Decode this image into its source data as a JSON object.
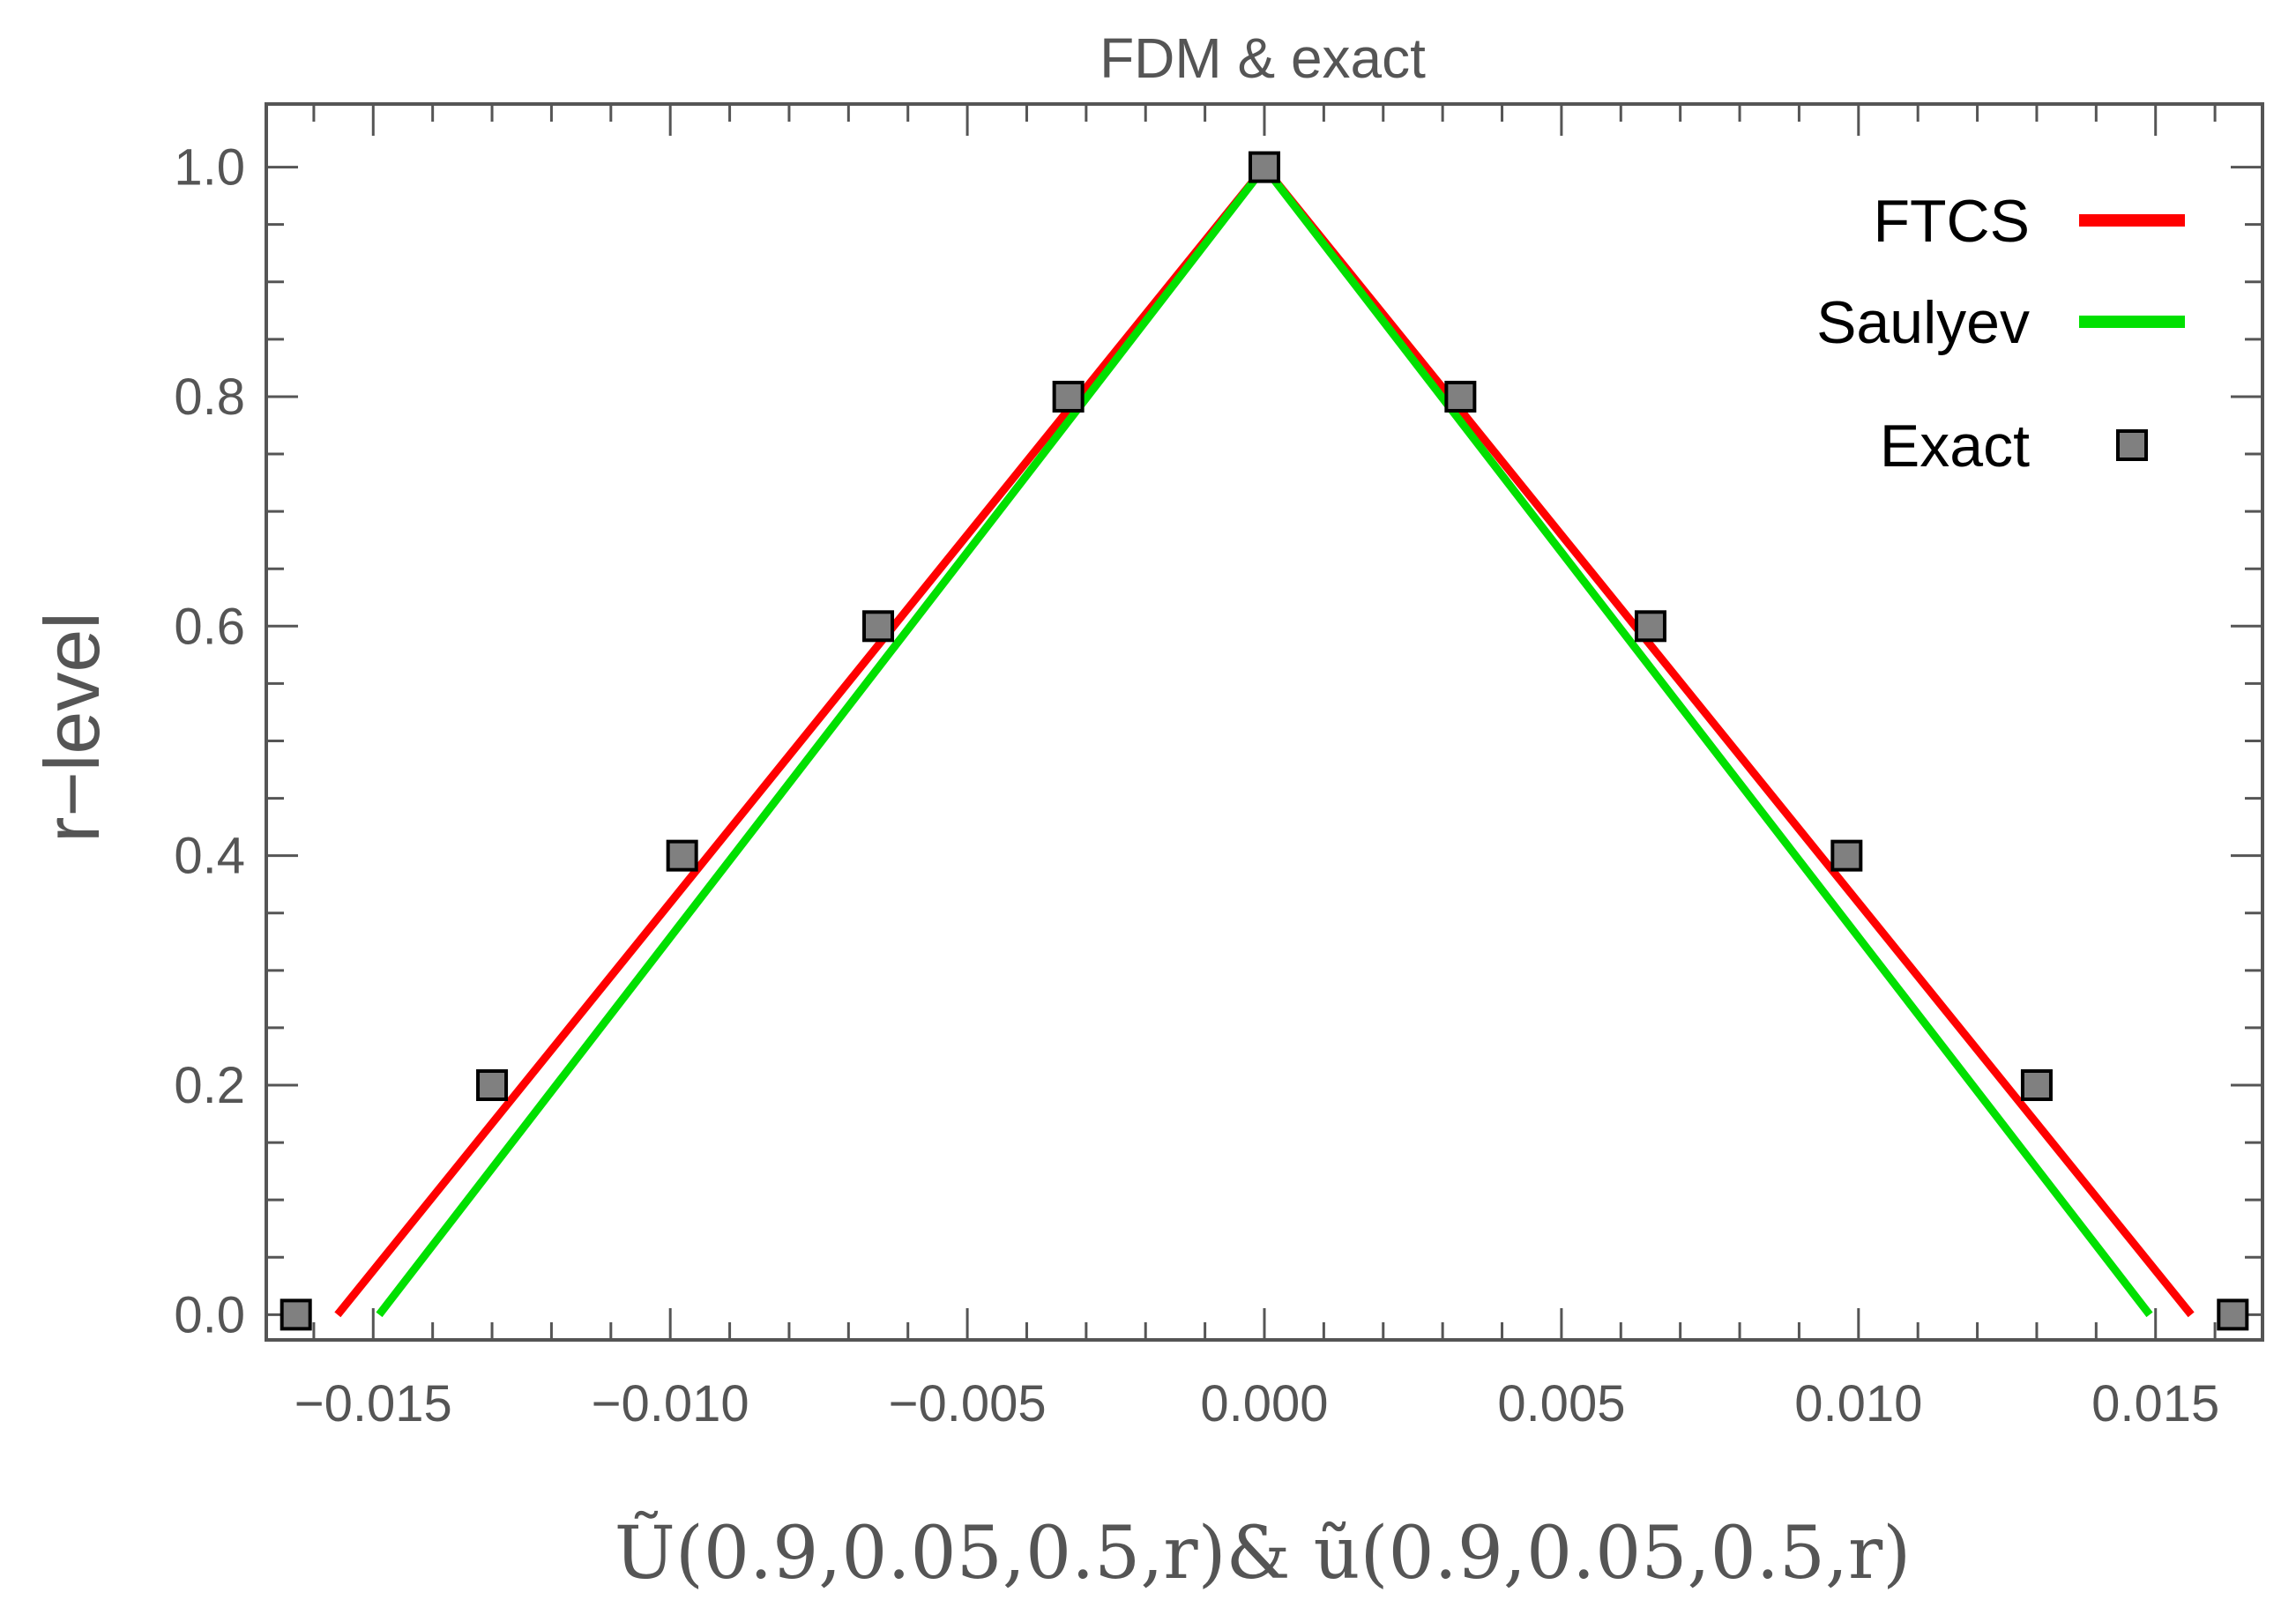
{
  "chart_data": {
    "type": "line",
    "title": "FDM & exact",
    "xlabel": "Ũ(0.9,0.05,0.5,r)& ũ(0.9,0.05,0.5,r)",
    "ylabel": "r−level",
    "xlim": [
      -0.0168,
      0.0168
    ],
    "ylim": [
      -0.022,
      1.055
    ],
    "x_ticks": [
      -0.015,
      -0.01,
      -0.005,
      0.0,
      0.005,
      0.01,
      0.015
    ],
    "x_tick_labels": [
      "−0.015",
      "−0.010",
      "−0.005",
      "0.000",
      "0.005",
      "0.010",
      "0.015"
    ],
    "y_ticks": [
      0.0,
      0.2,
      0.4,
      0.6,
      0.8,
      1.0
    ],
    "y_tick_labels": [
      "0.0",
      "0.2",
      "0.4",
      "0.6",
      "0.8",
      "1.0"
    ],
    "grid": false,
    "legend_position": "top-right",
    "series": [
      {
        "name": "FTCS",
        "kind": "line",
        "color": "#ff0000",
        "x": [
          -0.0156,
          0.0,
          0.0156
        ],
        "y": [
          0.0,
          1.0,
          0.0
        ]
      },
      {
        "name": "Saulyev",
        "kind": "line",
        "color": "#00e000",
        "x": [
          -0.0149,
          0.0,
          0.0149
        ],
        "y": [
          0.0,
          1.0,
          0.0
        ]
      },
      {
        "name": "Exact",
        "kind": "marker",
        "color": "#808080",
        "x": [
          -0.0163,
          -0.013,
          -0.0098,
          -0.0065,
          -0.0033,
          0.0,
          0.0033,
          0.0065,
          0.0098,
          0.013,
          0.0163
        ],
        "y": [
          0.0,
          0.2,
          0.4,
          0.6,
          0.8,
          1.0,
          0.8,
          0.6,
          0.4,
          0.2,
          0.0
        ]
      }
    ]
  }
}
